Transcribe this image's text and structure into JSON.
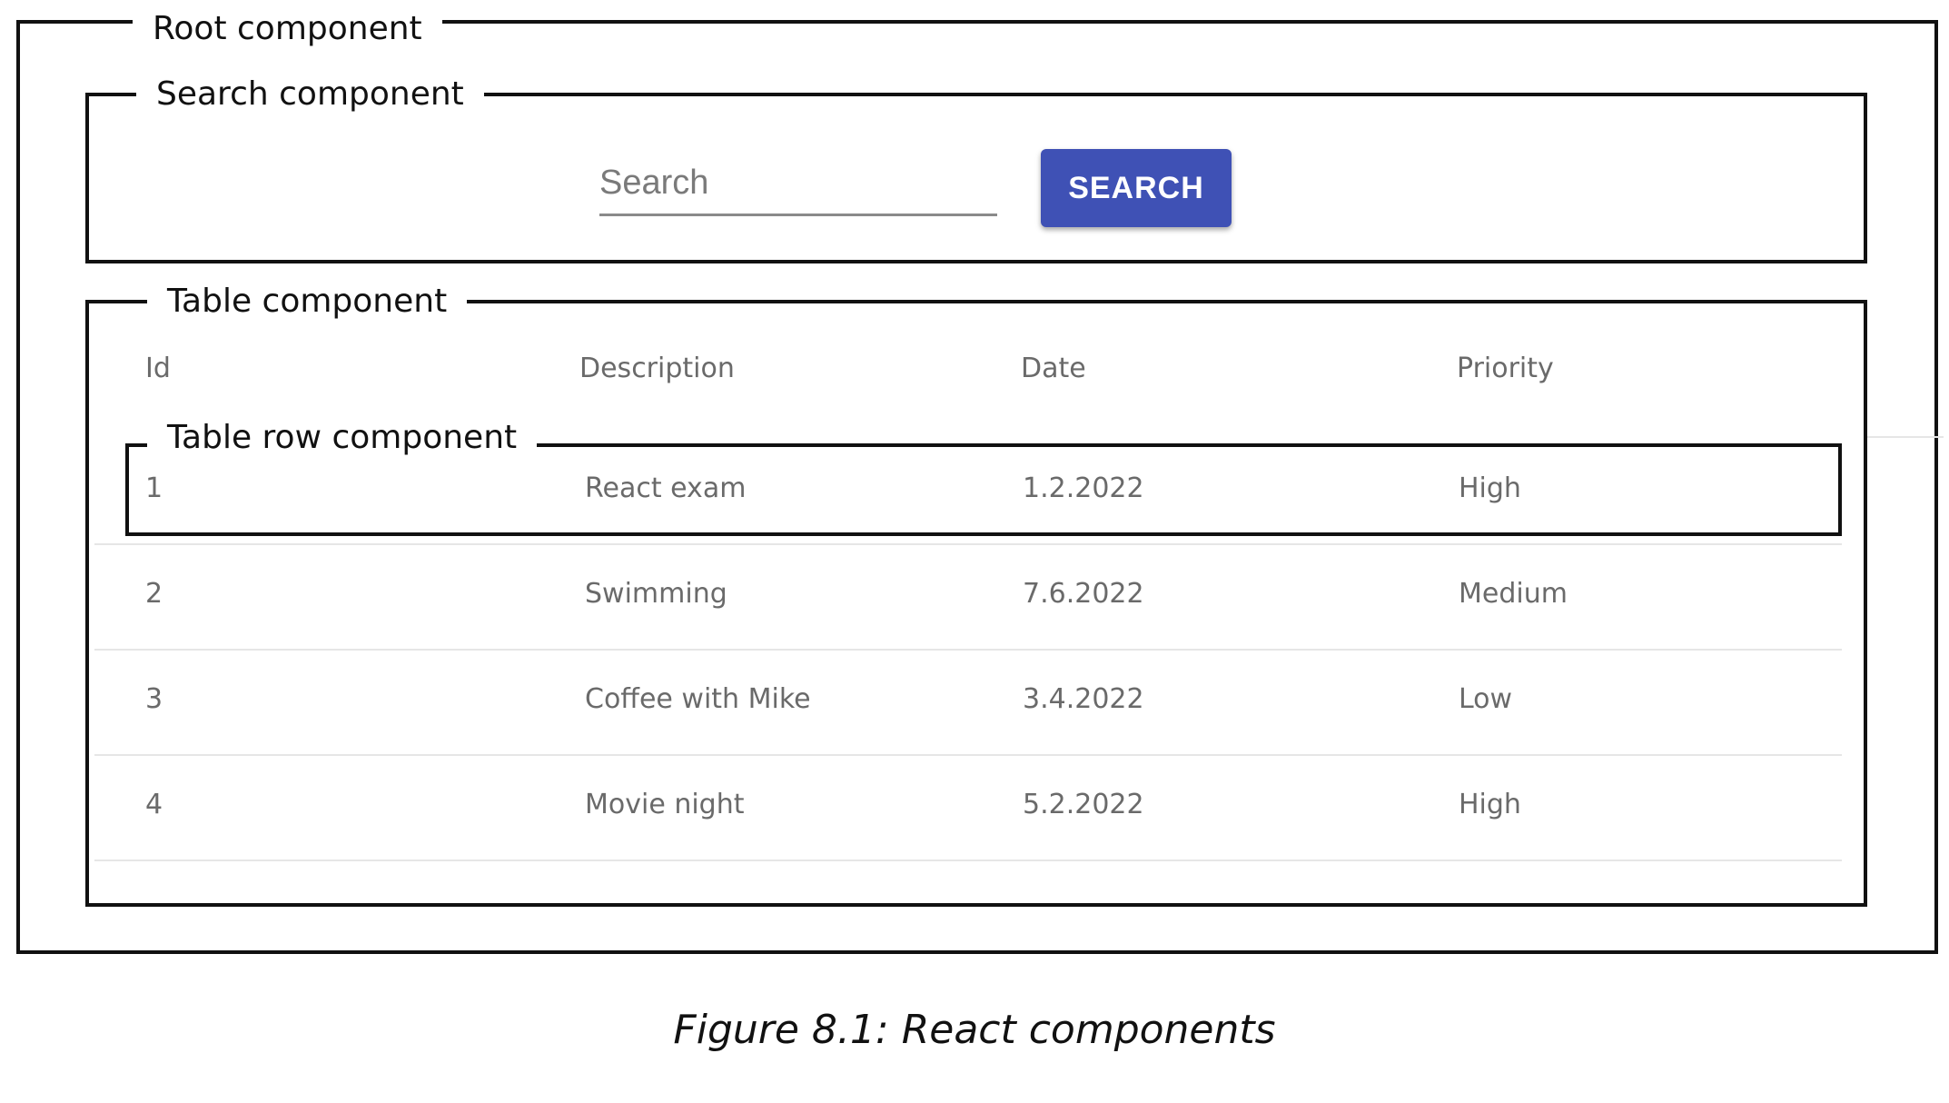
{
  "labels": {
    "root": "Root component",
    "search": "Search component",
    "table": "Table component",
    "row": "Table row component"
  },
  "search": {
    "placeholder": "Search",
    "button_label": "SEARCH",
    "button_color": "#3f51b5"
  },
  "table": {
    "columns": [
      "Id",
      "Description",
      "Date",
      "Priority"
    ],
    "rows": [
      [
        "1",
        "React exam",
        "1.2.2022",
        "High"
      ],
      [
        "2",
        "Swimming",
        "7.6.2022",
        "Medium"
      ],
      [
        "3",
        "Coffee with Mike",
        "3.4.2022",
        "Low"
      ],
      [
        "4",
        "Movie night",
        "5.2.2022",
        "High"
      ]
    ]
  },
  "caption": "Figure 8.1: React components"
}
